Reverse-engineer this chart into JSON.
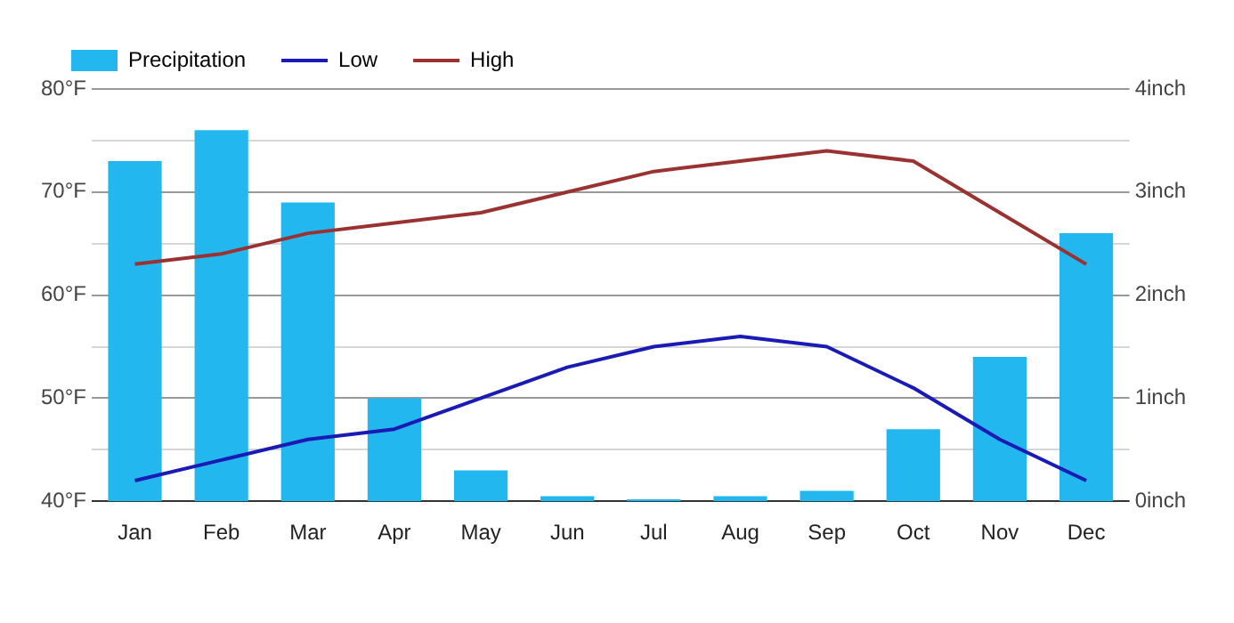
{
  "chart_data": {
    "type": "bar",
    "categories": [
      "Jan",
      "Feb",
      "Mar",
      "Apr",
      "May",
      "Jun",
      "Jul",
      "Aug",
      "Sep",
      "Oct",
      "Nov",
      "Dec"
    ],
    "series": [
      {
        "name": "Precipitation",
        "axis": "y2",
        "color": "#23b7f0",
        "values": [
          3.3,
          3.6,
          2.9,
          1.0,
          0.3,
          0.05,
          0.02,
          0.05,
          0.1,
          0.7,
          1.4,
          2.6
        ]
      },
      {
        "name": "Low",
        "type": "line",
        "color": "#1a1ab5",
        "values": [
          42,
          44,
          46,
          47,
          50,
          53,
          55,
          56,
          55,
          51,
          46,
          42
        ]
      },
      {
        "name": "High",
        "type": "line",
        "color": "#9b3232",
        "values": [
          63,
          64,
          66,
          67,
          68,
          70,
          72,
          73,
          74,
          73,
          68,
          63
        ]
      }
    ],
    "ylim": [
      40,
      80
    ],
    "yticks": [
      {
        "value": 40,
        "label": "40°F"
      },
      {
        "value": 45,
        "label": null
      },
      {
        "value": 50,
        "label": "50°F"
      },
      {
        "value": 55,
        "label": null
      },
      {
        "value": 60,
        "label": "60°F"
      },
      {
        "value": 65,
        "label": null
      },
      {
        "value": 70,
        "label": "70°F"
      },
      {
        "value": 75,
        "label": null
      },
      {
        "value": 80,
        "label": "80°F"
      }
    ],
    "y2lim": [
      0,
      4
    ],
    "y2ticks": [
      {
        "value": 0,
        "label": "0inch"
      },
      {
        "value": 1,
        "label": "1inch"
      },
      {
        "value": 2,
        "label": "2inch"
      },
      {
        "value": 3,
        "label": "3inch"
      },
      {
        "value": 4,
        "label": "4inch"
      }
    ],
    "grid": "y",
    "legend": "top left",
    "marker": "none",
    "line_style": "solid"
  }
}
